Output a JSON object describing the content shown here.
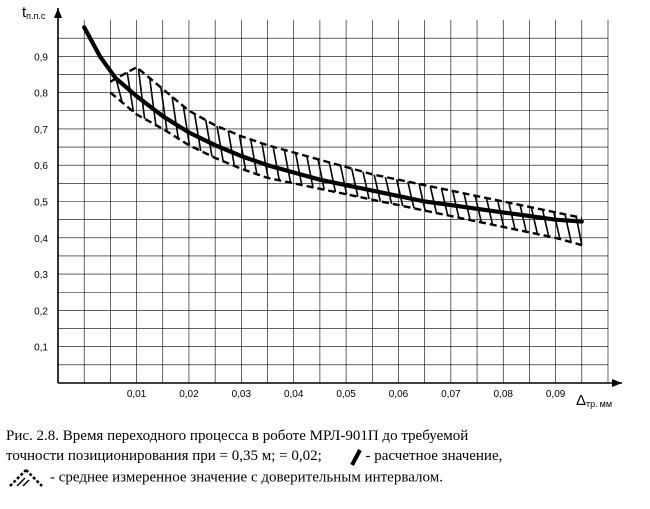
{
  "chart_data": {
    "type": "line",
    "ylabel": {
      "main": "t",
      "sub": "п.п.с"
    },
    "xlabel": {
      "main": "Δ",
      "sub": "тр.",
      "unit": "мм"
    },
    "xlim": [
      -0.005,
      0.1
    ],
    "ylim": [
      0,
      1.0
    ],
    "grid": true,
    "x_ticks": [
      {
        "value": 0.01,
        "label": "0,01"
      },
      {
        "value": 0.02,
        "label": "0,02"
      },
      {
        "value": 0.03,
        "label": "0,03"
      },
      {
        "value": 0.04,
        "label": "0,04"
      },
      {
        "value": 0.05,
        "label": "0,05"
      },
      {
        "value": 0.06,
        "label": "0,06"
      },
      {
        "value": 0.07,
        "label": "0,07"
      },
      {
        "value": 0.08,
        "label": "0,08"
      },
      {
        "value": 0.09,
        "label": "0,09"
      }
    ],
    "y_ticks": [
      {
        "value": 0.1,
        "label": "0,1"
      },
      {
        "value": 0.2,
        "label": "0,2"
      },
      {
        "value": 0.3,
        "label": "0,3"
      },
      {
        "value": 0.4,
        "label": "0,4"
      },
      {
        "value": 0.5,
        "label": "0,5"
      },
      {
        "value": 0.6,
        "label": "0,6"
      },
      {
        "value": 0.7,
        "label": "0,7"
      },
      {
        "value": 0.8,
        "label": "0,8"
      },
      {
        "value": 0.9,
        "label": "0,9"
      }
    ],
    "series": [
      {
        "role": "calculated",
        "x": [
          0.0,
          0.003,
          0.006,
          0.01,
          0.015,
          0.02,
          0.025,
          0.03,
          0.035,
          0.04,
          0.045,
          0.05,
          0.055,
          0.06,
          0.065,
          0.07,
          0.075,
          0.08,
          0.085,
          0.09,
          0.095
        ],
        "y": [
          0.98,
          0.9,
          0.84,
          0.79,
          0.735,
          0.69,
          0.655,
          0.625,
          0.6,
          0.58,
          0.56,
          0.545,
          0.53,
          0.515,
          0.5,
          0.49,
          0.48,
          0.47,
          0.46,
          0.45,
          0.445
        ]
      },
      {
        "role": "measured-upper",
        "x": [
          0.005,
          0.01,
          0.015,
          0.02,
          0.025,
          0.03,
          0.035,
          0.04,
          0.045,
          0.05,
          0.055,
          0.06,
          0.065,
          0.07,
          0.075,
          0.08,
          0.085,
          0.09,
          0.095
        ],
        "y": [
          0.83,
          0.87,
          0.81,
          0.75,
          0.71,
          0.68,
          0.655,
          0.635,
          0.615,
          0.595,
          0.575,
          0.56,
          0.545,
          0.53,
          0.515,
          0.5,
          0.485,
          0.47,
          0.455
        ]
      },
      {
        "role": "measured-lower",
        "x": [
          0.005,
          0.01,
          0.015,
          0.02,
          0.025,
          0.03,
          0.035,
          0.04,
          0.045,
          0.05,
          0.055,
          0.06,
          0.065,
          0.07,
          0.075,
          0.08,
          0.085,
          0.09,
          0.095
        ],
        "y": [
          0.8,
          0.74,
          0.7,
          0.655,
          0.62,
          0.59,
          0.565,
          0.55,
          0.535,
          0.52,
          0.505,
          0.49,
          0.475,
          0.46,
          0.445,
          0.43,
          0.415,
          0.4,
          0.38
        ]
      }
    ]
  },
  "caption": {
    "line1": "Рис. 2.8. Время переходного процесса в роботе МРЛ-901П до требуемой",
    "line2_text": "точности позиционирования при = 0,35  м;  = 0,02;",
    "line2_legend": "- расчетное значение,",
    "line3_legend": "- среднее измеренное значение с доверительным интервалом."
  }
}
